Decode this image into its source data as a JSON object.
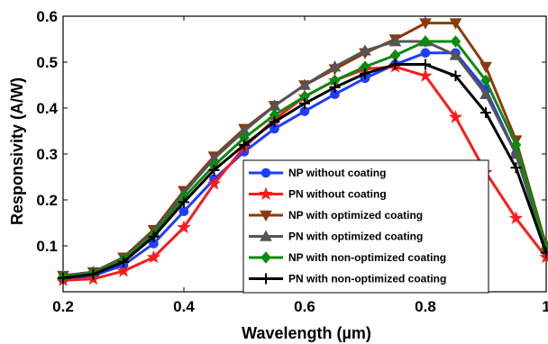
{
  "chart_data": {
    "type": "line",
    "title": "",
    "xlabel": "Wavelength (µm)",
    "ylabel": "Responsivity (A/W)",
    "xlim": [
      0.2,
      1.0
    ],
    "ylim": [
      0,
      0.6
    ],
    "x_ticks": [
      0.2,
      0.4,
      0.6,
      0.8,
      1.0
    ],
    "x_tick_labels": [
      "0.2",
      "0.4",
      "0.6",
      "0.8",
      "1"
    ],
    "y_ticks": [
      0.1,
      0.2,
      0.3,
      0.4,
      0.5,
      0.6
    ],
    "y_tick_labels": [
      "0.1",
      "0.2",
      "0.3",
      "0.4",
      "0.5",
      "0.6"
    ],
    "grid": false,
    "legend_position": "bottom-right",
    "x": [
      0.2,
      0.25,
      0.3,
      0.35,
      0.4,
      0.45,
      0.5,
      0.55,
      0.6,
      0.65,
      0.7,
      0.75,
      0.8,
      0.85,
      0.9,
      0.95,
      1.0
    ],
    "series": [
      {
        "name": "NP without coating",
        "color": "#1f3cff",
        "marker": "circle",
        "values": [
          0.027,
          0.035,
          0.058,
          0.105,
          0.175,
          0.245,
          0.305,
          0.355,
          0.393,
          0.43,
          0.465,
          0.495,
          0.52,
          0.52,
          0.44,
          0.3,
          0.09
        ]
      },
      {
        "name": "PN without coating",
        "color": "#ff1a1a",
        "marker": "star",
        "values": [
          0.025,
          0.028,
          0.045,
          0.075,
          0.14,
          0.235,
          0.315,
          0.375,
          0.425,
          0.46,
          0.485,
          0.49,
          0.47,
          0.38,
          0.26,
          0.16,
          0.075
        ]
      },
      {
        "name": "NP with optimized coating",
        "color": "#8b3a0e",
        "marker": "triangle-down",
        "values": [
          0.035,
          0.043,
          0.075,
          0.135,
          0.22,
          0.295,
          0.355,
          0.405,
          0.45,
          0.485,
          0.52,
          0.55,
          0.585,
          0.585,
          0.49,
          0.33,
          0.1
        ]
      },
      {
        "name": "PN with optimized coating",
        "color": "#555555",
        "marker": "triangle-up",
        "values": [
          0.035,
          0.043,
          0.073,
          0.13,
          0.215,
          0.29,
          0.35,
          0.405,
          0.45,
          0.49,
          0.525,
          0.545,
          0.545,
          0.515,
          0.43,
          0.3,
          0.095
        ]
      },
      {
        "name": "NP with non-optimized coating",
        "color": "#0e8a0e",
        "marker": "diamond",
        "values": [
          0.033,
          0.04,
          0.07,
          0.125,
          0.205,
          0.275,
          0.335,
          0.385,
          0.425,
          0.46,
          0.49,
          0.515,
          0.545,
          0.545,
          0.46,
          0.32,
          0.095
        ]
      },
      {
        "name": "PN with non-optimized coating",
        "color": "#000000",
        "marker": "plus",
        "values": [
          0.03,
          0.038,
          0.065,
          0.12,
          0.195,
          0.265,
          0.32,
          0.37,
          0.41,
          0.445,
          0.475,
          0.495,
          0.495,
          0.47,
          0.39,
          0.27,
          0.085
        ]
      }
    ]
  }
}
